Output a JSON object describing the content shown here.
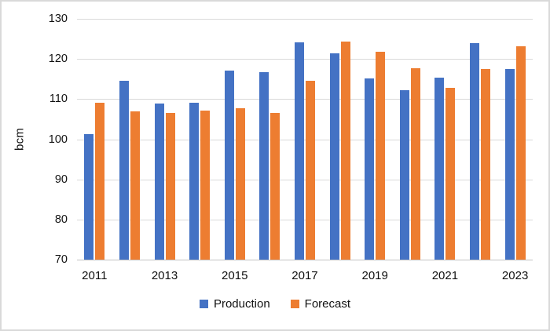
{
  "window": {
    "background": "#ffffff",
    "border_color": "#d9d9d9"
  },
  "chart_data": {
    "type": "bar",
    "title": "",
    "xlabel": "",
    "ylabel": "bcm",
    "ylim": [
      70,
      130
    ],
    "yticks": [
      70,
      80,
      90,
      100,
      110,
      120,
      130
    ],
    "grid": true,
    "gridline_color": "#d9d9d9",
    "axis_line_color": "#c3c3c3",
    "legend_position": "bottom",
    "categories": [
      "2011",
      "2012",
      "2013",
      "2014",
      "2015",
      "2016",
      "2017",
      "2018",
      "2019",
      "2020",
      "2021",
      "2022",
      "2023"
    ],
    "xtick_labels_visible": [
      "2011",
      "2013",
      "2015",
      "2017",
      "2019",
      "2021",
      "2023"
    ],
    "series": [
      {
        "name": "Production",
        "color": "#4472C4",
        "values": [
          101.3,
          114.6,
          108.8,
          109.0,
          117.2,
          116.7,
          124.2,
          121.5,
          115.1,
          112.3,
          115.3,
          123.9,
          117.4
        ]
      },
      {
        "name": "Forecast",
        "color": "#ED7D31",
        "values": [
          109.0,
          107.0,
          106.6,
          107.1,
          107.7,
          106.6,
          114.5,
          124.4,
          121.7,
          117.7,
          112.8,
          117.4,
          123.2
        ]
      }
    ]
  }
}
